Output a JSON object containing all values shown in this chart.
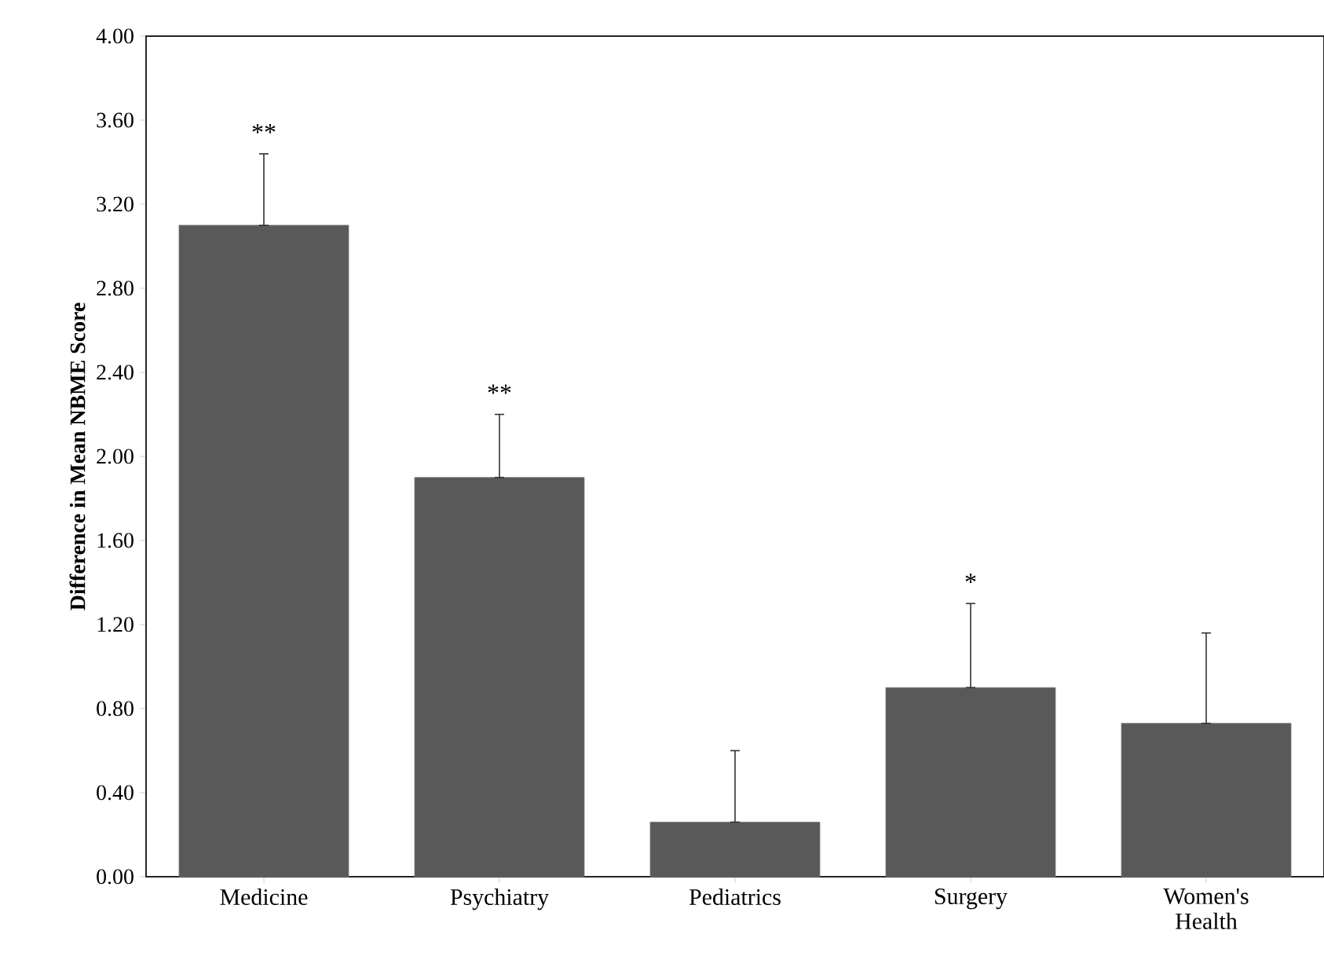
{
  "chart_data": {
    "type": "bar",
    "ylabel": "Difference in Mean NBME Score",
    "categories": [
      "Medicine",
      "Psychiatry",
      "Pediatrics",
      "Surgery",
      "Women's Health"
    ],
    "values": [
      3.1,
      1.9,
      0.26,
      0.9,
      0.73
    ],
    "errors": [
      [
        3.1,
        3.44
      ],
      [
        1.9,
        2.2
      ],
      [
        0.26,
        0.6
      ],
      [
        0.9,
        1.3
      ],
      [
        0.73,
        1.16
      ]
    ],
    "color": "#595959",
    "ylim": [
      0,
      4
    ],
    "yticks": [
      {
        "value": 0,
        "label": "0.00"
      },
      {
        "value": 0.4,
        "label": "0.40"
      },
      {
        "value": 0.8,
        "label": "0.80"
      },
      {
        "value": 1.2,
        "label": "1.20"
      },
      {
        "value": 1.6,
        "label": "1.60"
      },
      {
        "value": 2.0,
        "label": "2.00"
      },
      {
        "value": 2.4,
        "label": "2.40"
      },
      {
        "value": 2.8,
        "label": "2.80"
      },
      {
        "value": 3.2,
        "label": "3.20"
      },
      {
        "value": 3.6,
        "label": "3.60"
      },
      {
        "value": 4.0,
        "label": "4.00"
      }
    ],
    "annotations": [
      {
        "text": "**",
        "x": "Medicine",
        "y": 3.44
      },
      {
        "text": "**",
        "x": "Psychiatry",
        "y": 2.2
      },
      {
        "text": "*",
        "x": "Surgery",
        "y": 1.3
      }
    ]
  }
}
